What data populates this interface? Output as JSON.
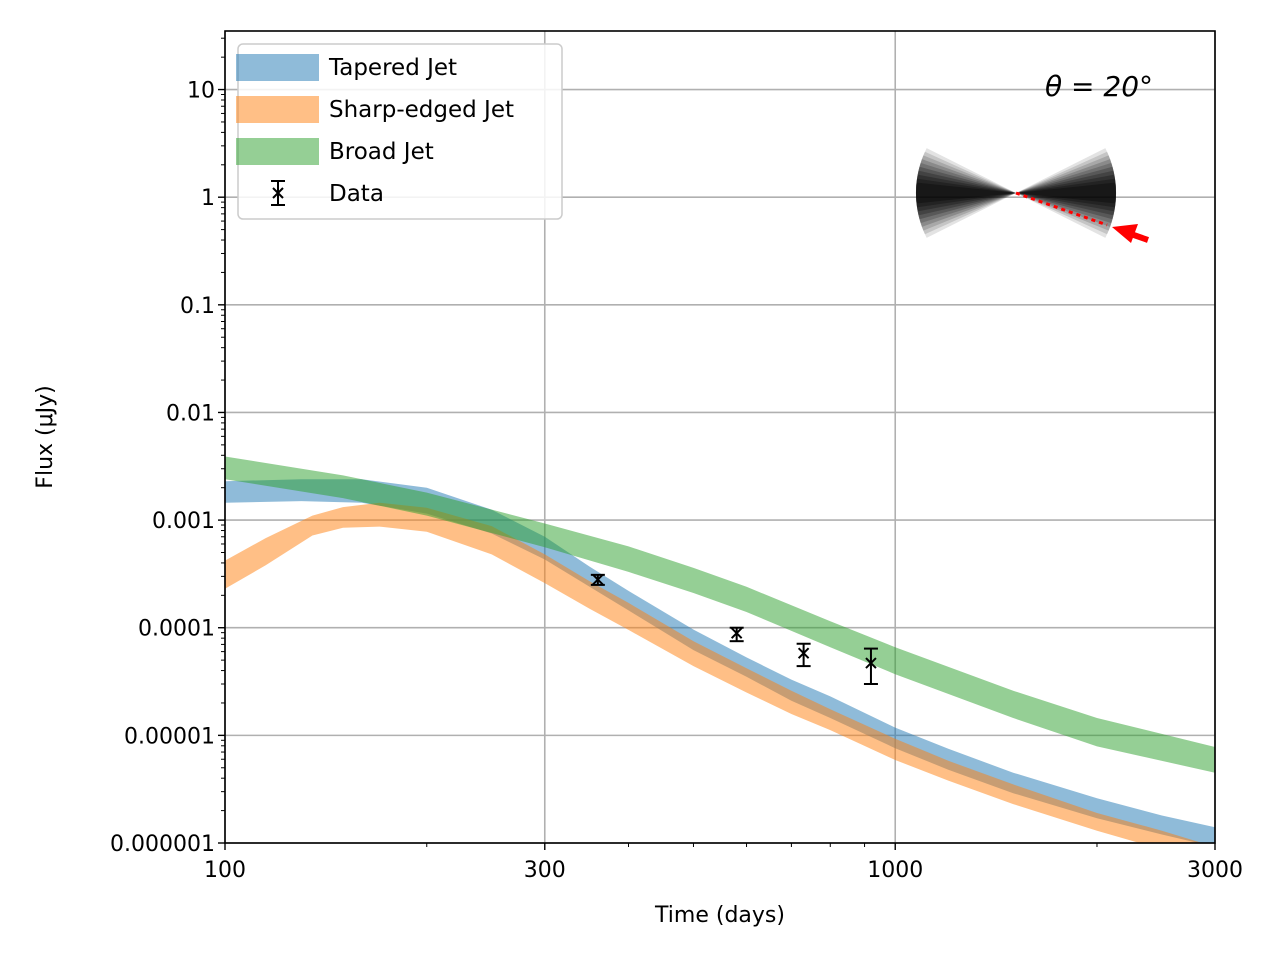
{
  "chart_data": {
    "type": "line",
    "xlabel": "Time (days)",
    "ylabel": "Flux (μJy)",
    "xscale": "log",
    "yscale": "log",
    "xlim": [
      100,
      3000
    ],
    "ylim": [
      1e-06,
      35
    ],
    "xticks": [
      {
        "value": 100,
        "label": "100"
      },
      {
        "value": 300,
        "label": "300"
      },
      {
        "value": 1000,
        "label": "1000"
      },
      {
        "value": 3000,
        "label": "3000"
      }
    ],
    "yticks": [
      {
        "value": 10,
        "label": "10"
      },
      {
        "value": 1,
        "label": "1"
      },
      {
        "value": 0.1,
        "label": "0.1"
      },
      {
        "value": 0.01,
        "label": "0.01"
      },
      {
        "value": 0.001,
        "label": "0.001"
      },
      {
        "value": 0.0001,
        "label": "0.0001"
      },
      {
        "value": 1e-05,
        "label": "0.00001"
      },
      {
        "value": 1e-06,
        "label": "0.000001"
      }
    ],
    "grid": true,
    "legend_position": "upper-left",
    "annotation": "θ = 20°",
    "series": [
      {
        "name": "Tapered Jet",
        "kind": "band",
        "color": "#1f77b4",
        "x": [
          100,
          130,
          160,
          200,
          250,
          300,
          350,
          400,
          500,
          600,
          700,
          800,
          1000,
          1200,
          1500,
          2000,
          2500,
          3000
        ],
        "lower": [
          0.00145,
          0.0015,
          0.00145,
          0.00115,
          0.00075,
          0.00043,
          0.00024,
          0.000145,
          6.2e-05,
          3.5e-05,
          2.1e-05,
          1.45e-05,
          7.6e-06,
          4.8e-06,
          2.9e-06,
          1.7e-06,
          1.2e-06,
          9.2e-07
        ],
        "upper": [
          0.0023,
          0.0024,
          0.0024,
          0.002,
          0.00125,
          0.0007,
          0.00037,
          0.00022,
          9.6e-05,
          5.3e-05,
          3.3e-05,
          2.3e-05,
          1.18e-05,
          7.5e-06,
          4.5e-06,
          2.6e-06,
          1.8e-06,
          1.4e-06
        ]
      },
      {
        "name": "Sharp-edged Jet",
        "kind": "band",
        "color": "#ff7f0e",
        "x": [
          100,
          115,
          135,
          150,
          170,
          200,
          250,
          300,
          350,
          400,
          500,
          600,
          700,
          800,
          1000,
          1200,
          1500,
          2000,
          2500,
          3000
        ],
        "lower": [
          0.00023,
          0.00038,
          0.00072,
          0.00085,
          0.00087,
          0.00078,
          0.00048,
          0.00026,
          0.00015,
          9.55e-05,
          4.4e-05,
          2.5e-05,
          1.58e-05,
          1.12e-05,
          5.9e-06,
          3.8e-06,
          2.3e-06,
          1.3e-06,
          8.7e-07,
          6.2e-07
        ],
        "upper": [
          0.00042,
          0.00068,
          0.0011,
          0.00132,
          0.00145,
          0.0013,
          0.00088,
          0.00048,
          0.00027,
          0.00017,
          7.5e-05,
          4.2e-05,
          2.6e-05,
          1.75e-05,
          9.3e-06,
          5.8e-06,
          3.5e-06,
          1.9e-06,
          1.3e-06,
          9.2e-07
        ]
      },
      {
        "name": "Broad Jet",
        "kind": "band",
        "color": "#2ca02c",
        "x": [
          100,
          150,
          200,
          300,
          400,
          500,
          600,
          800,
          1000,
          1500,
          2000,
          3000
        ],
        "lower": [
          0.0024,
          0.0016,
          0.0011,
          0.00056,
          0.00033,
          0.00021,
          0.00014,
          6.6e-05,
          3.7e-05,
          1.45e-05,
          7.9e-06,
          4.5e-06
        ],
        "upper": [
          0.0039,
          0.0026,
          0.0018,
          0.00093,
          0.00057,
          0.00036,
          0.00024,
          0.000115,
          6.6e-05,
          2.6e-05,
          1.45e-05,
          7.8e-06
        ]
      },
      {
        "name": "Data",
        "kind": "errorbar",
        "color": "#000000",
        "points": [
          {
            "x": 360,
            "y": 0.00028,
            "ylow": 0.00025,
            "yhigh": 0.00031
          },
          {
            "x": 580,
            "y": 8.9e-05,
            "ylow": 7.5e-05,
            "yhigh": 0.0001
          },
          {
            "x": 730,
            "y": 5.8e-05,
            "ylow": 4.4e-05,
            "yhigh": 7.1e-05
          },
          {
            "x": 920,
            "y": 4.7e-05,
            "ylow": 3e-05,
            "yhigh": 6.4e-05
          }
        ]
      }
    ]
  }
}
